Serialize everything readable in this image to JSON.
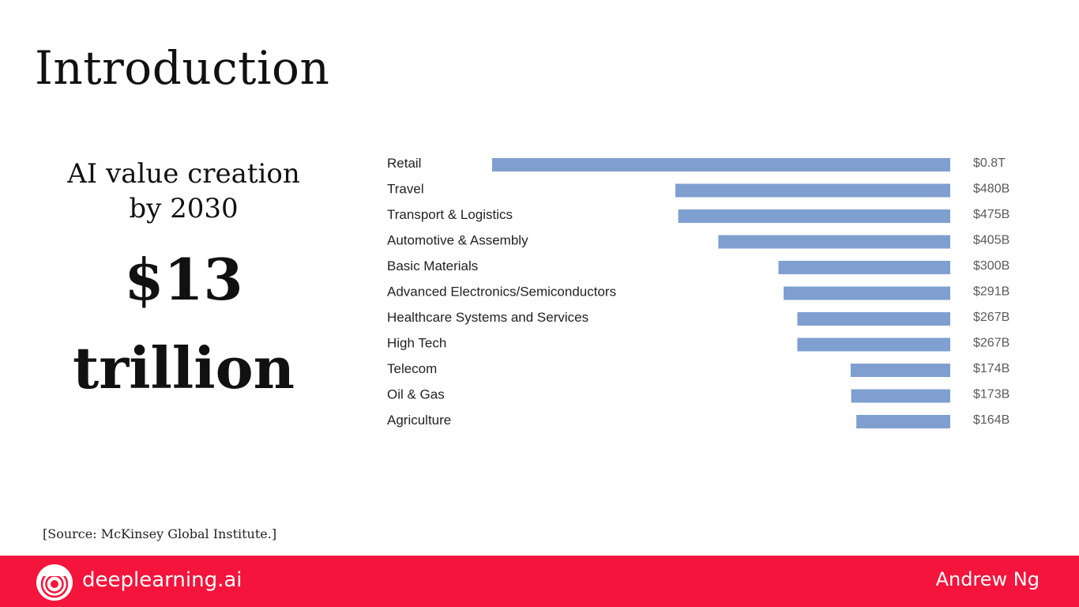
{
  "slide": {
    "title": "Introduction",
    "subhead_line1": "AI value creation",
    "subhead_line2": "by 2030",
    "big_number_line1": "$13",
    "big_number_line2": "trillion",
    "source": "[Source: McKinsey Global Institute.]"
  },
  "footer": {
    "brand": "deeplearning.ai",
    "author": "Andrew Ng",
    "logo_icon": "deeplearning-logo-icon",
    "background_color": "#f4143c"
  },
  "chart_data": {
    "type": "bar",
    "orientation": "horizontal",
    "unit": "billion USD",
    "bar_color": "#7f9fd0",
    "categories": [
      "Retail",
      "Travel",
      "Transport & Logistics",
      "Automotive & Assembly",
      "Basic Materials",
      "Advanced Electronics/Semiconductors",
      "Healthcare Systems and Services",
      "High Tech",
      "Telecom",
      "Oil & Gas",
      "Agriculture"
    ],
    "values": [
      800,
      480,
      475,
      405,
      300,
      291,
      267,
      267,
      174,
      173,
      164
    ],
    "value_labels": [
      "$0.8T",
      "$480B",
      "$475B",
      "$405B",
      "$300B",
      "$291B",
      "$267B",
      "$267B",
      "$174B",
      "$173B",
      "$164B"
    ],
    "xlim": [
      0,
      800
    ],
    "grid": false,
    "legend": "none"
  }
}
